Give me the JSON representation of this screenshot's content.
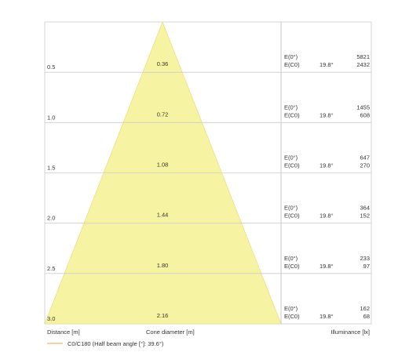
{
  "rows": [
    {
      "distance": "0.5",
      "diameter": "0.36",
      "e0_label": "E(0°)",
      "ec0_label": "E(C0)",
      "angle": "19.8°",
      "e0": "5821",
      "ec0": "2432"
    },
    {
      "distance": "1.0",
      "diameter": "0.72",
      "e0_label": "E(0°)",
      "ec0_label": "E(C0)",
      "angle": "19.8°",
      "e0": "1455",
      "ec0": "608"
    },
    {
      "distance": "1.5",
      "diameter": "1.08",
      "e0_label": "E(0°)",
      "ec0_label": "E(C0)",
      "angle": "19.8°",
      "e0": "647",
      "ec0": "270"
    },
    {
      "distance": "2.0",
      "diameter": "1.44",
      "e0_label": "E(0°)",
      "ec0_label": "E(C0)",
      "angle": "19.8°",
      "e0": "364",
      "ec0": "152"
    },
    {
      "distance": "2.5",
      "diameter": "1.80",
      "e0_label": "E(0°)",
      "ec0_label": "E(C0)",
      "angle": "19.8°",
      "e0": "233",
      "ec0": "97"
    },
    {
      "distance": "3.0",
      "diameter": "2.16",
      "e0_label": "E(0°)",
      "ec0_label": "E(C0)",
      "angle": "19.8°",
      "e0": "162",
      "ec0": "68"
    }
  ],
  "footer": {
    "distance_label": "Distance [m]",
    "diameter_label": "Cone diameter [m]",
    "illuminance_label": "Illuminance [lx]"
  },
  "legend": {
    "text": "C0/C180 (Half beam angle [°]: 39.6°)"
  }
}
